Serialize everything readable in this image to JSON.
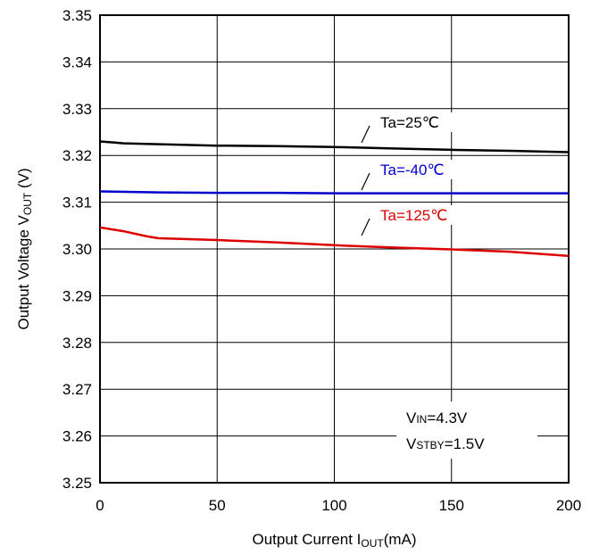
{
  "chart_data": {
    "type": "line",
    "title": "",
    "xlabel": {
      "main": "Output Current I",
      "sub": "OUT",
      "suffix": "(mA)"
    },
    "ylabel": {
      "main": "Output Voltage V",
      "sub": "OUT",
      "suffix": " (V)"
    },
    "xlim": [
      0,
      200
    ],
    "ylim": [
      3.25,
      3.35
    ],
    "x_ticks": [
      0,
      50,
      100,
      150,
      200
    ],
    "x_tick_labels": [
      "0",
      "50",
      "100",
      "150",
      "200"
    ],
    "y_ticks": [
      3.25,
      3.26,
      3.27,
      3.28,
      3.29,
      3.3,
      3.31,
      3.32,
      3.33,
      3.34,
      3.35
    ],
    "y_tick_labels": [
      "3.25",
      "3.26",
      "3.27",
      "3.28",
      "3.29",
      "3.30",
      "3.31",
      "3.32",
      "3.33",
      "3.34",
      "3.35"
    ],
    "grid": true,
    "series": [
      {
        "name": "Ta=25℃",
        "color": "#000000",
        "x": [
          0,
          10,
          25,
          50,
          75,
          100,
          125,
          150,
          175,
          200
        ],
        "y": [
          3.323,
          3.3226,
          3.3224,
          3.3221,
          3.322,
          3.3218,
          3.3215,
          3.3212,
          3.321,
          3.3207
        ]
      },
      {
        "name": "Ta=-40℃",
        "color": "#0000cc",
        "x": [
          0,
          25,
          50,
          75,
          100,
          125,
          150,
          175,
          200
        ],
        "y": [
          3.3123,
          3.3121,
          3.312,
          3.312,
          3.3119,
          3.3119,
          3.3119,
          3.3119,
          3.3119
        ]
      },
      {
        "name": "Ta=125℃",
        "color": "#dd0000",
        "x": [
          0,
          10,
          20,
          25,
          50,
          75,
          100,
          125,
          150,
          175,
          200
        ],
        "y": [
          3.3046,
          3.3038,
          3.3027,
          3.3023,
          3.3019,
          3.3014,
          3.3008,
          3.3003,
          3.2999,
          3.2994,
          3.2985
        ]
      }
    ],
    "conditions": {
      "vin": {
        "main": "V",
        "sub": "IN",
        "suffix": "=4.3V"
      },
      "vstby": {
        "main": "V",
        "sub": "STBY",
        "suffix": "=1.5V"
      }
    }
  }
}
